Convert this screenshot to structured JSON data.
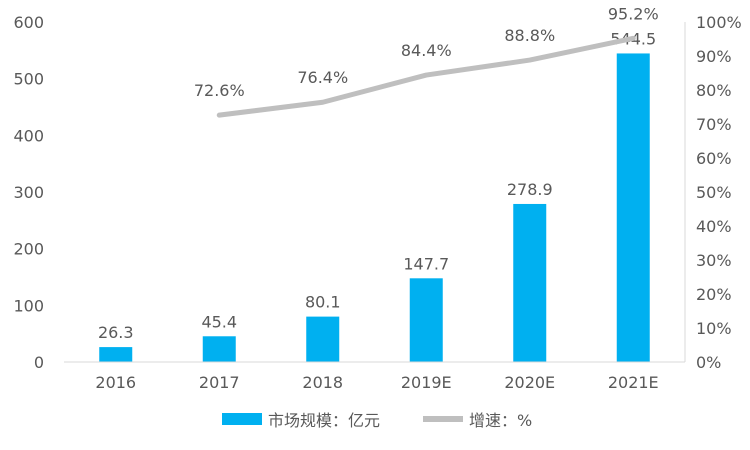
{
  "chart_data": {
    "type": "bar",
    "categories": [
      "2016",
      "2017",
      "2018",
      "2019E",
      "2020E",
      "2021E"
    ],
    "series": [
      {
        "name": "市场规模：亿元",
        "type": "bar",
        "axis": "left",
        "color": "#00b0f0",
        "values": [
          26.3,
          45.4,
          80.1,
          147.7,
          278.9,
          544.5
        ],
        "labels": [
          "26.3",
          "45.4",
          "80.1",
          "147.7",
          "278.9",
          "544.5"
        ]
      },
      {
        "name": "增速：%",
        "type": "line",
        "axis": "right",
        "color": "#bfbfbf",
        "values": [
          null,
          72.6,
          76.4,
          84.4,
          88.8,
          95.2
        ],
        "labels": [
          "",
          "72.6%",
          "76.4%",
          "84.4%",
          "88.8%",
          "95.2%"
        ]
      }
    ],
    "y_left": {
      "min": 0,
      "max": 600,
      "step": 100,
      "ticks": [
        "0",
        "100",
        "200",
        "300",
        "400",
        "500",
        "600"
      ]
    },
    "y_right": {
      "min": 0,
      "max": 100,
      "step": 10,
      "ticks": [
        "0%",
        "10%",
        "20%",
        "30%",
        "40%",
        "50%",
        "60%",
        "70%",
        "80%",
        "90%",
        "100%"
      ]
    },
    "grid": false,
    "legend_position": "bottom"
  }
}
